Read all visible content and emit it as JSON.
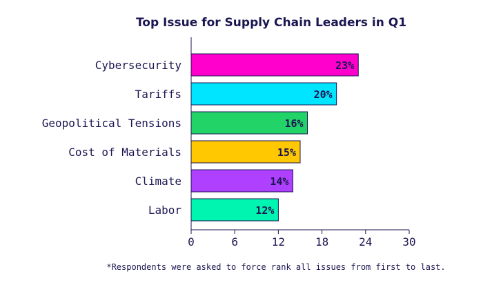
{
  "chart_data": {
    "type": "bar",
    "orientation": "horizontal",
    "title": "Top Issue for Supply Chain Leaders in Q1",
    "categories": [
      "Cybersecurity",
      "Tariffs",
      "Geopolitical Tensions",
      "Cost of Materials",
      "Climate",
      "Labor"
    ],
    "values": [
      23,
      20,
      16,
      15,
      14,
      12
    ],
    "data_labels": [
      "23%",
      "20%",
      "16%",
      "15%",
      "14%",
      "12%"
    ],
    "colors": [
      "#ff00cc",
      "#00e5ff",
      "#22d468",
      "#ffc800",
      "#b040ff",
      "#00f5b0"
    ],
    "xlim": [
      0,
      30
    ],
    "xticks": [
      0,
      6,
      12,
      18,
      24,
      30
    ],
    "xlabel": "",
    "ylabel": "",
    "grid": false,
    "footnote": "*Respondents were asked to force rank all issues from first to last."
  }
}
